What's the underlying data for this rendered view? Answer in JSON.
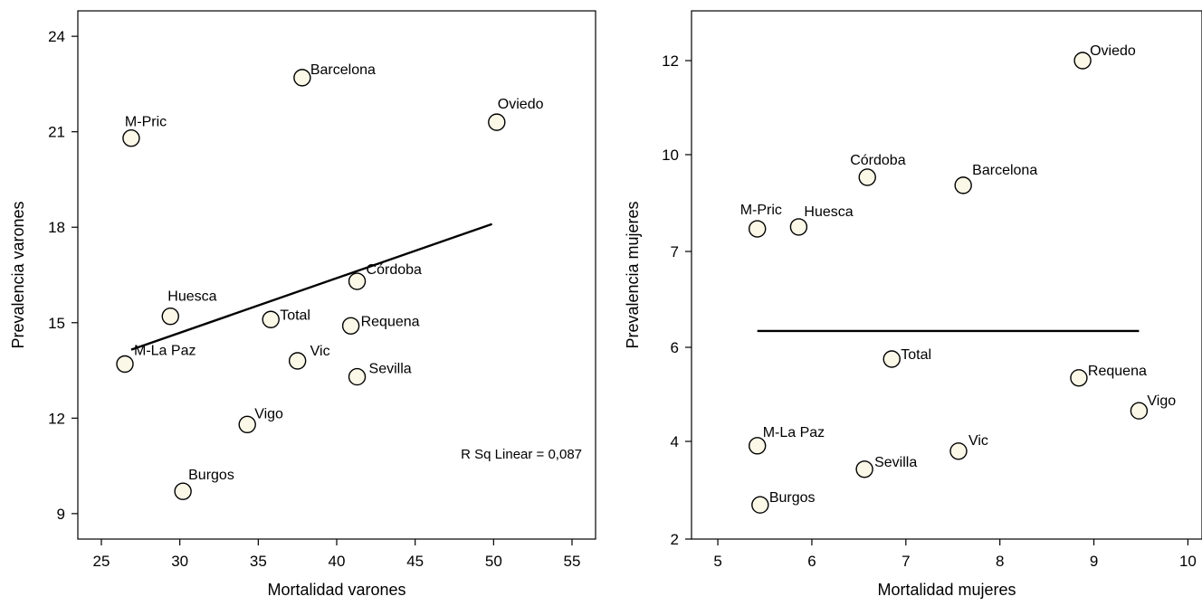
{
  "chart_data": [
    {
      "type": "scatter",
      "title": "",
      "xlabel": "Mortalidad varones",
      "ylabel": "Prevalencia varones",
      "xlim": [
        23.5,
        56.5
      ],
      "ylim": [
        8.2,
        24.8
      ],
      "xticks": [
        25,
        30,
        35,
        40,
        45,
        50,
        55
      ],
      "yticks": [
        9,
        12,
        15,
        18,
        21,
        24
      ],
      "tick_labels_x": [
        "25",
        "30",
        "35",
        "40",
        "45",
        "50",
        "55"
      ],
      "tick_labels_y": [
        "9",
        "12",
        "15",
        "18",
        "21",
        "24"
      ],
      "grid": false,
      "point_color": "#fbf8e8",
      "points": [
        {
          "label": "Barcelona",
          "x": 37.8,
          "y": 22.7
        },
        {
          "label": "M-Pric",
          "x": 26.9,
          "y": 20.8
        },
        {
          "label": "Oviedo",
          "x": 50.2,
          "y": 21.3
        },
        {
          "label": "Córdoba",
          "x": 41.3,
          "y": 16.3
        },
        {
          "label": "Huesca",
          "x": 29.4,
          "y": 15.2
        },
        {
          "label": "Total",
          "x": 35.8,
          "y": 15.1
        },
        {
          "label": "Requena",
          "x": 40.9,
          "y": 14.9
        },
        {
          "label": "M-La Paz",
          "x": 26.5,
          "y": 13.7
        },
        {
          "label": "Vic",
          "x": 37.5,
          "y": 13.8
        },
        {
          "label": "Sevilla",
          "x": 41.3,
          "y": 13.3
        },
        {
          "label": "Vigo",
          "x": 34.3,
          "y": 11.8
        },
        {
          "label": "Burgos",
          "x": 30.2,
          "y": 9.7
        }
      ],
      "fit_line": {
        "x": [
          26.9,
          49.9
        ],
        "y": [
          14.15,
          18.1
        ]
      },
      "annotation": "R Sq Linear = 0,087"
    },
    {
      "type": "scatter",
      "title": "",
      "xlabel": "Mortalidad mujeres",
      "ylabel": "Prevalencia mujeres",
      "xlim": [
        4.72,
        10.15
      ],
      "ylim": [
        2,
        13
      ],
      "xticks": [
        5,
        6,
        7,
        8,
        9,
        10
      ],
      "yticks": [
        2,
        4,
        6,
        7,
        10,
        12
      ],
      "tick_labels_x": [
        "5",
        "6",
        "7",
        "8",
        "9",
        "10"
      ],
      "tick_labels_y": [
        "2",
        "4",
        "6",
        "7",
        "10",
        "12"
      ],
      "grid": false,
      "point_color": "#fbf8e8",
      "points": [
        {
          "label": "Oviedo",
          "x": 8.88,
          "y": 12.0
        },
        {
          "label": "Córdoba",
          "x": 6.59,
          "y": 9.3
        },
        {
          "label": "Barcelona",
          "x": 7.61,
          "y": 9.05
        },
        {
          "label": "M-Pric",
          "x": 5.42,
          "y": 7.7
        },
        {
          "label": "Huesca",
          "x": 5.86,
          "y": 7.76
        },
        {
          "label": "Total",
          "x": 6.85,
          "y": 5.75
        },
        {
          "label": "Requena",
          "x": 8.84,
          "y": 5.35
        },
        {
          "label": "Vigo",
          "x": 9.48,
          "y": 4.65
        },
        {
          "label": "M-La Paz",
          "x": 5.42,
          "y": 3.91
        },
        {
          "label": "Vic",
          "x": 7.56,
          "y": 3.8
        },
        {
          "label": "Sevilla",
          "x": 6.56,
          "y": 3.43
        },
        {
          "label": "Burgos",
          "x": 5.45,
          "y": 2.7
        }
      ],
      "fit_line": {
        "x": [
          5.42,
          9.48
        ],
        "y": [
          6.17,
          6.17
        ]
      }
    }
  ]
}
